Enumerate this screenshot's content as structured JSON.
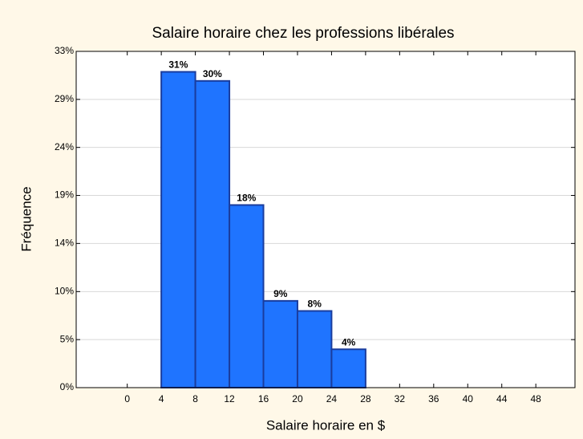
{
  "chart_data": {
    "type": "histogram",
    "title": "Salaire horaire chez les professions libérales",
    "xlabel": "Salaire horaire en $",
    "ylabel": "Fréquence",
    "bins": [
      4,
      8,
      12,
      16,
      20,
      24,
      28
    ],
    "values": [
      31.3,
      30.4,
      18.1,
      8.6,
      7.6,
      3.8
    ],
    "value_labels": [
      "31%",
      "30%",
      "18%",
      "9%",
      "8%",
      "4%"
    ],
    "color": "#1f74ff",
    "edge_color": "#1a3d9e",
    "xlim": [
      -6,
      52.6
    ],
    "xticks": [
      0,
      4,
      8,
      12,
      16,
      20,
      24,
      28,
      32,
      36,
      40,
      44,
      48
    ],
    "ylim": [
      0,
      33.33
    ],
    "yticks": [
      {
        "value": 0,
        "label": "0%"
      },
      {
        "value": 4.76,
        "label": "5%"
      },
      {
        "value": 9.52,
        "label": "10%"
      },
      {
        "value": 14.29,
        "label": "14%"
      },
      {
        "value": 19.05,
        "label": "19%"
      },
      {
        "value": 23.81,
        "label": "24%"
      },
      {
        "value": 28.57,
        "label": "29%"
      },
      {
        "value": 33.33,
        "label": "33%"
      }
    ],
    "grid": true
  }
}
